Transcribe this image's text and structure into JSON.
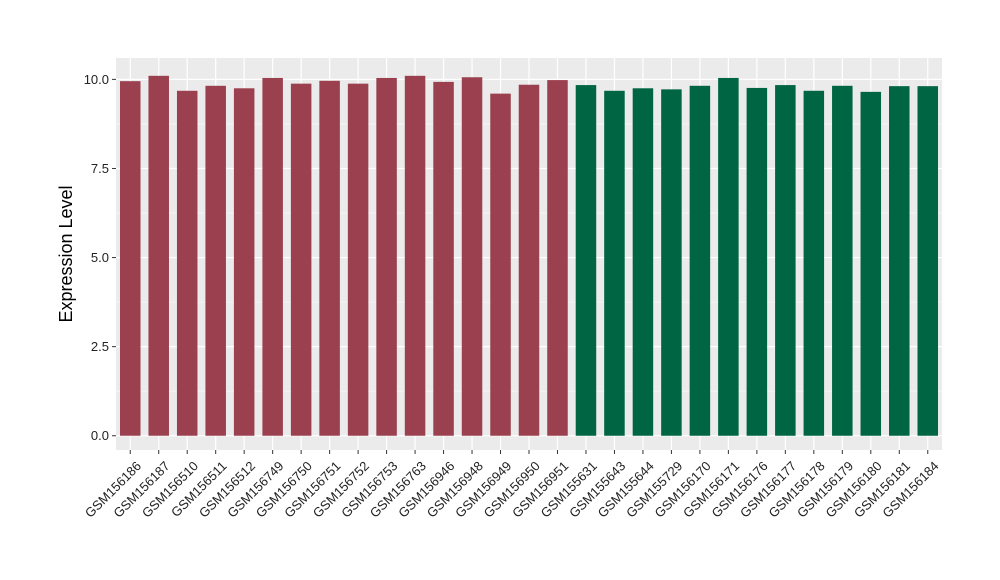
{
  "chart_data": {
    "type": "bar",
    "title": "",
    "xlabel": "",
    "ylabel": "Expression Level",
    "ylim": [
      -0.4,
      10.6
    ],
    "yticks": [
      0.0,
      2.5,
      5.0,
      7.5,
      10.0
    ],
    "ytick_labels": [
      "0.0",
      "2.5",
      "5.0",
      "7.5",
      "10.0"
    ],
    "grid": true,
    "legend": "none",
    "categories": [
      "GSM156186",
      "GSM156187",
      "GSM156510",
      "GSM156511",
      "GSM156512",
      "GSM156749",
      "GSM156750",
      "GSM156751",
      "GSM156752",
      "GSM156753",
      "GSM156763",
      "GSM156946",
      "GSM156948",
      "GSM156949",
      "GSM156950",
      "GSM156951",
      "GSM155631",
      "GSM155643",
      "GSM155644",
      "GSM155729",
      "GSM156170",
      "GSM156171",
      "GSM156176",
      "GSM156177",
      "GSM156178",
      "GSM156179",
      "GSM156180",
      "GSM156181",
      "GSM156184"
    ],
    "values": [
      9.95,
      10.1,
      9.68,
      9.82,
      9.75,
      10.04,
      9.88,
      9.96,
      9.88,
      10.04,
      10.1,
      9.93,
      10.06,
      9.6,
      9.85,
      9.98,
      9.84,
      9.68,
      9.75,
      9.72,
      9.82,
      10.04,
      9.76,
      9.84,
      9.68,
      9.82,
      9.65,
      9.81,
      9.81
    ],
    "colors": [
      "#9b404f",
      "#9b404f",
      "#9b404f",
      "#9b404f",
      "#9b404f",
      "#9b404f",
      "#9b404f",
      "#9b404f",
      "#9b404f",
      "#9b404f",
      "#9b404f",
      "#9b404f",
      "#9b404f",
      "#9b404f",
      "#9b404f",
      "#9b404f",
      "#006543",
      "#006543",
      "#006543",
      "#006543",
      "#006543",
      "#006543",
      "#006543",
      "#006543",
      "#006543",
      "#006543",
      "#006543",
      "#006543",
      "#006543"
    ]
  }
}
